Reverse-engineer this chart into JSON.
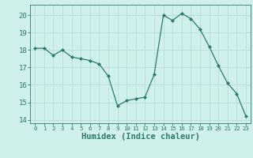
{
  "x": [
    0,
    1,
    2,
    3,
    4,
    5,
    6,
    7,
    8,
    9,
    10,
    11,
    12,
    13,
    14,
    15,
    16,
    17,
    18,
    19,
    20,
    21,
    22,
    23
  ],
  "y": [
    18.1,
    18.1,
    17.7,
    18.0,
    17.6,
    17.5,
    17.4,
    17.2,
    16.5,
    14.8,
    15.1,
    15.2,
    15.3,
    16.6,
    20.0,
    19.7,
    20.1,
    19.8,
    19.2,
    18.2,
    17.1,
    16.1,
    15.5,
    14.2
  ],
  "line_color": "#2d7a6e",
  "marker": "D",
  "marker_size": 2.0,
  "bg_color": "#cff0eb",
  "grid_color": "#b8ddd8",
  "xlabel": "Humidex (Indice chaleur)",
  "xlim": [
    -0.5,
    23.5
  ],
  "ylim": [
    13.8,
    20.6
  ],
  "yticks": [
    14,
    15,
    16,
    17,
    18,
    19,
    20
  ],
  "xticks": [
    0,
    1,
    2,
    3,
    4,
    5,
    6,
    7,
    8,
    9,
    10,
    11,
    12,
    13,
    14,
    15,
    16,
    17,
    18,
    19,
    20,
    21,
    22,
    23
  ],
  "tick_color": "#2d7a6e",
  "axis_color": "#2d7a6e",
  "tick_fontsize": 6.5,
  "xlabel_fontsize": 7.5
}
